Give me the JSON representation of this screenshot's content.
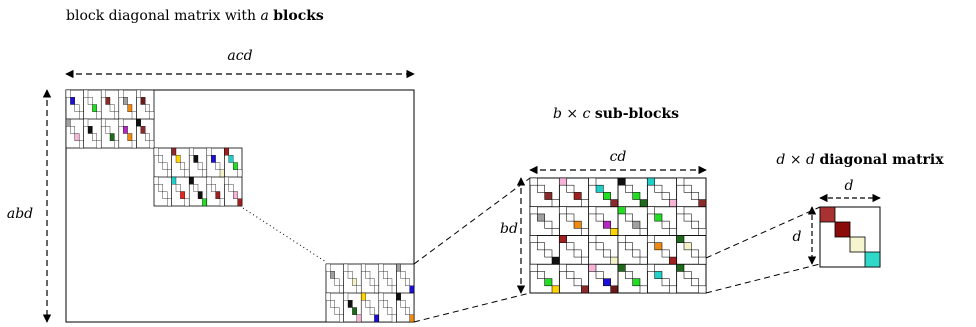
{
  "labels": {
    "title_main": "block diagonal matrix with ",
    "title_var": "a",
    "title_bold": "blocks",
    "width_label": "acd",
    "height_label": "abd",
    "sub_title_var1": "b",
    "sub_title_times": " × ",
    "sub_title_var2": "c",
    "sub_title_bold": "sub-blocks",
    "sub_width_label": "cd",
    "sub_height_label": "bd",
    "diag_title_var1": "d",
    "diag_title_times": " × ",
    "diag_title_var2": "d",
    "diag_title_bold": "diagonal matrix",
    "diag_width_label": "d",
    "diag_height_label": "d"
  },
  "colors": {
    "palette": [
      "#e8261d",
      "#1c10d6",
      "#a0a0a0",
      "#b428c0",
      "#ffd400",
      "#1f6a1c",
      "#111111",
      "#ee8a10",
      "#22dd22",
      "#8a2a2a",
      "#f8b4d8",
      "#20d0c8",
      "#f5f2c8",
      "#a02020",
      "#6a1a1a"
    ],
    "diag_cells": [
      "#a83232",
      "#8b0a0a",
      "#f5f5d0",
      "#30d8c8"
    ]
  }
}
